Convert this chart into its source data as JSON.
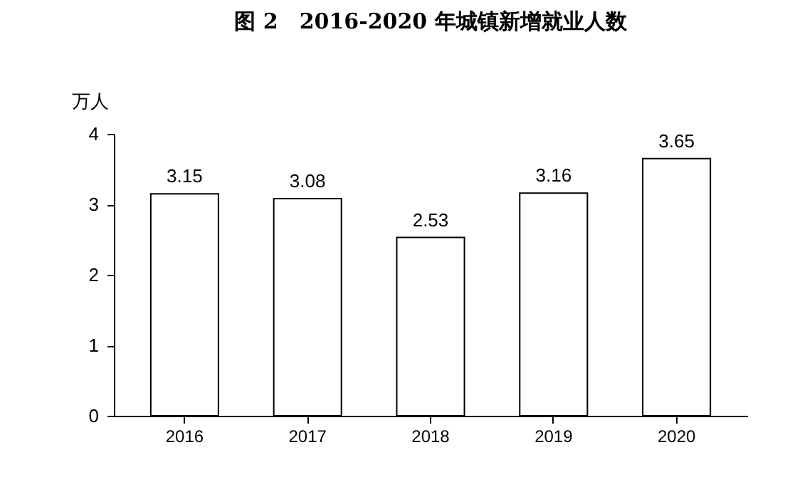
{
  "chart_data": {
    "type": "bar",
    "title": "图 2　2016-2020 年城镇新增就业人数",
    "ylabel": "万人",
    "categories": [
      "2016",
      "2017",
      "2018",
      "2019",
      "2020"
    ],
    "values": [
      3.15,
      3.08,
      2.53,
      3.16,
      3.65
    ],
    "color": "#ffffff",
    "ylim": [
      0,
      4
    ],
    "yticks": [
      0,
      1,
      2,
      3,
      4
    ],
    "grid": false,
    "data_labels": true
  }
}
